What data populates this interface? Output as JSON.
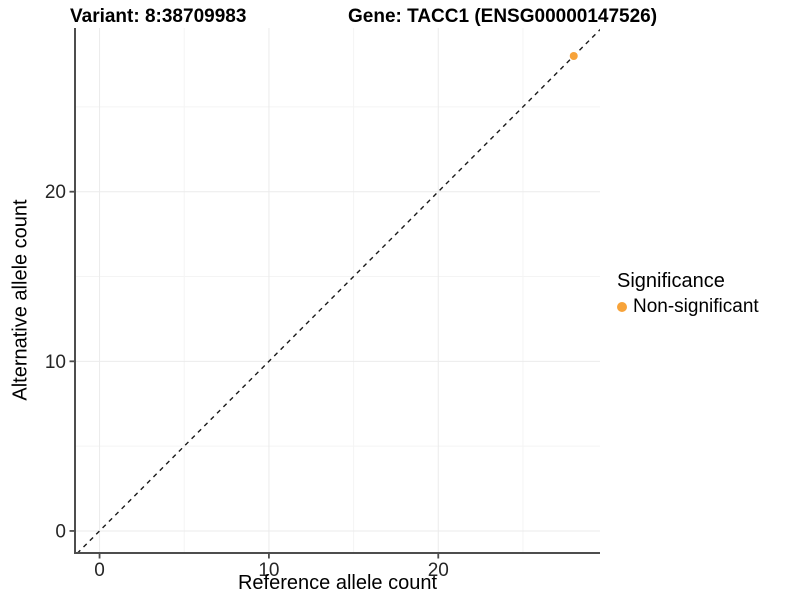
{
  "header": {
    "variant_title": "Variant: 8:38709983",
    "gene_title": "Gene: TACC1 (ENSG00000147526)"
  },
  "chart_data": {
    "type": "scatter",
    "title": "Variant: 8:38709983  Gene: TACC1 (ENSG00000147526)",
    "xlabel": "Reference allele count",
    "ylabel": "Alternative allele count",
    "xlim": [
      -1.45,
      29.55
    ],
    "ylim": [
      -1.3,
      29.65
    ],
    "xticks": [
      0,
      10,
      20
    ],
    "yticks": [
      0,
      10,
      20
    ],
    "gridlines": {
      "major": [
        0,
        10,
        20
      ],
      "minor": [
        5,
        15,
        25
      ]
    },
    "identity_line": {
      "slope": 1,
      "intercept": 0,
      "style": "dashed",
      "color": "#1a1a1a"
    },
    "series": [
      {
        "name": "Non-significant",
        "color": "#F7A33A",
        "points": [
          {
            "x": 28,
            "y": 28
          }
        ]
      }
    ],
    "legend_position": "right"
  },
  "legend": {
    "title": "Significance",
    "items": [
      {
        "label": "Non-significant",
        "color": "#F7A33A",
        "marker": "circle"
      }
    ]
  },
  "style": {
    "background": "#ffffff",
    "axis_color": "#4d4d4d",
    "tick_label_color": "#262626",
    "grid_major_color": "#ebebeb",
    "grid_minor_color": "#f4f4f4",
    "point_color": "#F7A33A"
  }
}
